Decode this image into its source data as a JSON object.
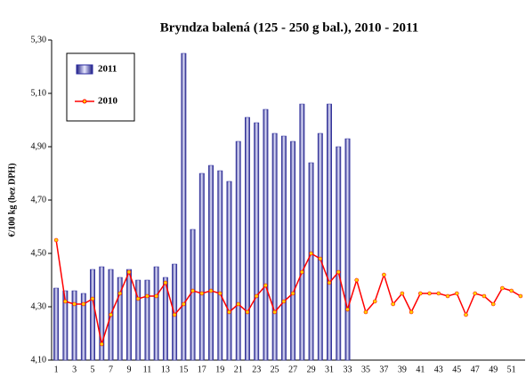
{
  "chart_data": {
    "type": "bar_line",
    "title": "Bryndza balená (125 - 250 g bal.), 2010 - 2011",
    "y_label": "€/100 kg (bez DPH)",
    "categories": [
      "1",
      null,
      "3",
      null,
      "5",
      null,
      "7",
      null,
      "9",
      null,
      "11",
      null,
      "13",
      null,
      "15",
      null,
      "17",
      null,
      "19",
      null,
      "21",
      null,
      "23",
      null,
      "25",
      null,
      "27",
      null,
      "29",
      null,
      "31",
      null,
      "33",
      null,
      "35",
      null,
      "37",
      null,
      "39",
      null,
      "41",
      null,
      "43",
      null,
      "45",
      null,
      "47",
      null,
      "49",
      null,
      "51",
      null
    ],
    "series": [
      {
        "name": "2011",
        "type": "bar",
        "color": "#2a2aa0",
        "values": [
          4.37,
          4.36,
          4.36,
          4.35,
          4.44,
          4.45,
          4.44,
          4.41,
          4.44,
          4.4,
          4.4,
          4.45,
          4.41,
          4.46,
          5.25,
          4.59,
          4.8,
          4.83,
          4.81,
          4.77,
          4.92,
          5.01,
          4.99,
          5.04,
          4.95,
          4.94,
          4.92,
          5.06,
          4.84,
          4.95,
          5.06,
          4.9,
          4.93,
          null,
          null,
          null,
          null,
          null,
          null,
          null,
          null,
          null,
          null,
          null,
          null,
          null,
          null,
          null,
          null,
          null,
          null,
          null
        ]
      },
      {
        "name": "2010",
        "type": "line",
        "color": "#ff0000",
        "values": [
          4.55,
          4.32,
          4.31,
          4.31,
          4.33,
          4.16,
          4.27,
          4.35,
          4.43,
          4.33,
          4.34,
          4.34,
          4.39,
          4.27,
          4.31,
          4.36,
          4.35,
          4.36,
          4.35,
          4.28,
          4.31,
          4.28,
          4.34,
          4.38,
          4.28,
          4.32,
          4.35,
          4.43,
          4.5,
          4.48,
          4.39,
          4.43,
          4.29,
          4.4,
          4.28,
          4.32,
          4.42,
          4.31,
          4.35,
          4.28,
          4.35,
          4.35,
          4.35,
          4.34,
          4.35,
          4.27,
          4.35,
          4.34,
          4.31,
          4.37,
          4.36,
          4.34
        ]
      }
    ],
    "ylim": [
      4.1,
      5.3
    ],
    "yticks": [
      {
        "value": 4.1,
        "label": "4,10"
      },
      {
        "value": 4.3,
        "label": "4,30"
      },
      {
        "value": 4.5,
        "label": "4,50"
      },
      {
        "value": 4.7,
        "label": "4,70"
      },
      {
        "value": 4.9,
        "label": "4,90"
      },
      {
        "value": 5.1,
        "label": "5,10"
      },
      {
        "value": 5.3,
        "label": "5,30"
      }
    ],
    "legend": "top-left"
  }
}
